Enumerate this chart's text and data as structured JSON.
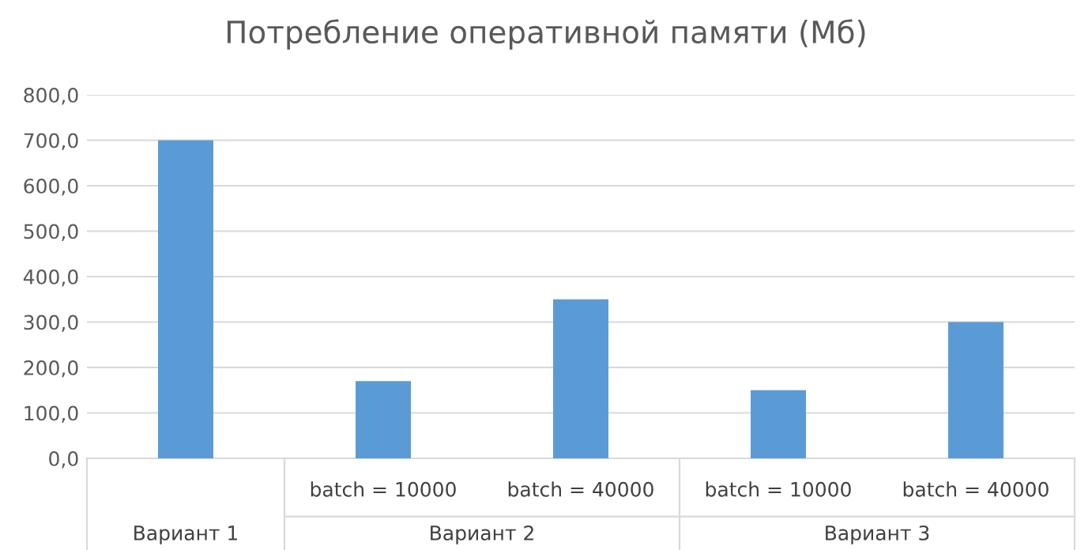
{
  "chart_data": {
    "type": "bar",
    "title": "Потребление оперативной памяти (Мб)",
    "categories": [
      null,
      "batch = 10000",
      "batch = 40000",
      "batch = 10000",
      "batch = 40000"
    ],
    "values": [
      700,
      170,
      350,
      150,
      300
    ],
    "color": "#5b9bd5",
    "ylim": [
      0,
      800
    ],
    "yticks": [
      {
        "value": 0,
        "label": "0,0"
      },
      {
        "value": 100,
        "label": "100,0"
      },
      {
        "value": 200,
        "label": "200,0"
      },
      {
        "value": 300,
        "label": "300,0"
      },
      {
        "value": 400,
        "label": "400,0"
      },
      {
        "value": 500,
        "label": "500,0"
      },
      {
        "value": 600,
        "label": "600,0"
      },
      {
        "value": 700,
        "label": "700,0"
      },
      {
        "value": 800,
        "label": "800,0"
      }
    ],
    "grid": "y",
    "annotations": [
      "Вариант 1",
      "Вариант 2",
      "Вариант 3"
    ]
  }
}
